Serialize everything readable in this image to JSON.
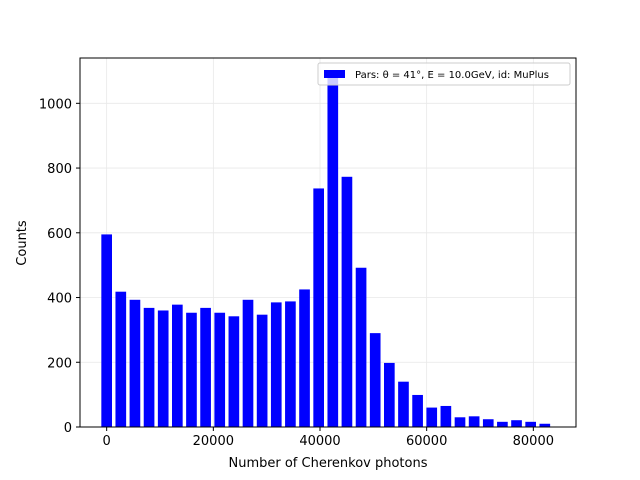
{
  "chart_data": {
    "type": "bar",
    "xlabel": "Number of Cherenkov photons",
    "ylabel": "Counts",
    "xlim": [
      -5000,
      88000
    ],
    "ylim": [
      0,
      1140
    ],
    "grid": true,
    "legend_position": "top-right",
    "bar_color": "#0000ff",
    "x_ticks": [
      0,
      20000,
      40000,
      60000,
      80000
    ],
    "y_ticks": [
      0,
      200,
      400,
      600,
      800,
      1000
    ],
    "bar_width": 2000,
    "series": [
      {
        "name": "Pars: θ = 41°, E = 10.0GeV, id: MuPlus",
        "x": [
          0,
          2650,
          5300,
          7950,
          10600,
          13250,
          15900,
          18550,
          21200,
          23850,
          26500,
          29150,
          31800,
          34450,
          37100,
          39750,
          42400,
          45050,
          47700,
          50350,
          53000,
          55650,
          58300,
          60950,
          63600,
          66250,
          68900,
          71550,
          74200,
          76850,
          79500,
          82150
        ],
        "values": [
          595,
          418,
          393,
          368,
          360,
          378,
          353,
          368,
          353,
          342,
          393,
          347,
          385,
          388,
          425,
          737,
          1082,
          773,
          492,
          290,
          198,
          140,
          99,
          60,
          65,
          30,
          33,
          24,
          16,
          21,
          16,
          10
        ]
      }
    ]
  }
}
